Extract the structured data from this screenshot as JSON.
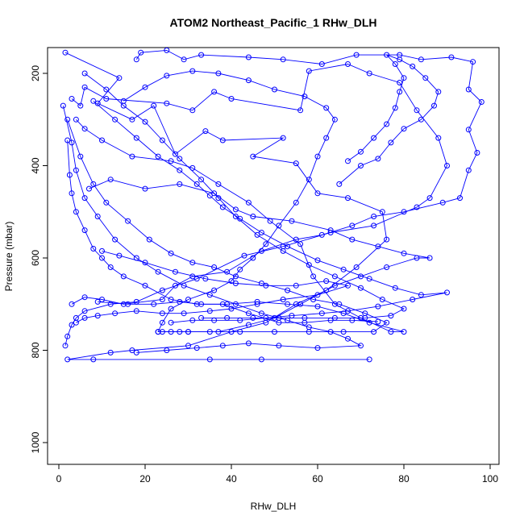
{
  "chart_data": {
    "type": "line",
    "title": "ATOM2 Northeast_Pacific_1 RHw_DLH",
    "xlabel": "RHw_DLH",
    "ylabel": "Pressure (mbar)",
    "xlim": [
      0,
      100
    ],
    "ylim": [
      1050,
      150
    ],
    "y_reversed": true,
    "x_ticks": [
      0,
      20,
      40,
      60,
      80,
      100
    ],
    "y_ticks": [
      200,
      400,
      600,
      800,
      1000
    ],
    "grid": false,
    "legend": "none",
    "series_color": "#0000ff",
    "marker": "open-circle",
    "series": [
      {
        "points": [
          [
            1.5,
            155
          ],
          [
            14,
            210
          ],
          [
            9,
            265
          ],
          [
            17,
            300
          ],
          [
            22,
            270
          ],
          [
            27,
            375
          ],
          [
            34,
            325
          ],
          [
            38,
            345
          ],
          [
            52,
            340
          ],
          [
            45,
            380
          ],
          [
            55,
            395
          ],
          [
            60,
            460
          ],
          [
            67,
            470
          ],
          [
            75,
            500
          ],
          [
            76,
            560
          ],
          [
            69,
            620
          ],
          [
            62,
            670
          ],
          [
            55,
            700
          ],
          [
            48,
            740
          ],
          [
            40,
            760
          ],
          [
            30,
            790
          ],
          [
            17,
            800
          ],
          [
            12,
            805
          ],
          [
            2,
            820
          ],
          [
            8,
            820
          ],
          [
            35,
            820
          ],
          [
            47,
            820
          ],
          [
            72,
            820
          ]
        ]
      },
      {
        "points": [
          [
            3,
            255
          ],
          [
            5,
            270
          ],
          [
            6,
            230
          ],
          [
            11,
            255
          ],
          [
            25,
            265
          ],
          [
            31,
            280
          ],
          [
            36,
            240
          ],
          [
            40,
            255
          ],
          [
            56,
            280
          ],
          [
            58,
            195
          ],
          [
            67,
            180
          ],
          [
            72,
            200
          ],
          [
            79,
            220
          ],
          [
            83,
            280
          ],
          [
            88,
            340
          ],
          [
            90,
            400
          ],
          [
            86,
            470
          ],
          [
            83,
            490
          ],
          [
            73,
            530
          ],
          [
            63,
            545
          ],
          [
            52,
            575
          ],
          [
            43,
            595
          ],
          [
            32,
            645
          ],
          [
            24,
            670
          ],
          [
            18,
            695
          ],
          [
            12,
            700
          ],
          [
            6,
            715
          ],
          [
            4,
            730
          ],
          [
            3,
            745
          ],
          [
            2,
            770
          ],
          [
            1.5,
            790
          ]
        ]
      },
      {
        "points": [
          [
            18,
            170
          ],
          [
            19,
            155
          ],
          [
            25,
            150
          ],
          [
            29,
            170
          ],
          [
            33,
            160
          ],
          [
            44,
            165
          ],
          [
            52,
            170
          ],
          [
            61,
            180
          ],
          [
            69,
            160
          ],
          [
            79,
            160
          ],
          [
            84,
            170
          ],
          [
            91,
            165
          ],
          [
            96,
            175
          ],
          [
            95,
            235
          ],
          [
            98,
            262
          ],
          [
            95,
            322
          ],
          [
            97,
            372
          ],
          [
            95,
            410
          ],
          [
            93,
            470
          ],
          [
            89,
            480
          ],
          [
            80,
            500
          ],
          [
            73,
            510
          ],
          [
            68,
            530
          ],
          [
            61,
            550
          ],
          [
            55,
            560
          ],
          [
            47,
            585
          ],
          [
            39,
            630
          ],
          [
            31,
            640
          ],
          [
            27,
            660
          ],
          [
            24,
            690
          ],
          [
            15,
            700
          ],
          [
            10,
            690
          ],
          [
            6,
            685
          ],
          [
            3,
            700
          ]
        ]
      },
      {
        "points": [
          [
            2,
            345
          ],
          [
            2.5,
            420
          ],
          [
            3,
            460
          ],
          [
            4,
            500
          ],
          [
            6,
            540
          ],
          [
            8,
            580
          ],
          [
            10,
            600
          ],
          [
            12,
            620
          ],
          [
            15,
            640
          ],
          [
            20,
            660
          ],
          [
            26,
            690
          ],
          [
            32,
            700
          ],
          [
            38,
            700
          ],
          [
            44,
            720
          ],
          [
            51,
            740
          ],
          [
            57,
            740
          ],
          [
            63,
            735
          ],
          [
            68,
            735
          ],
          [
            74,
            738
          ]
        ]
      },
      {
        "points": [
          [
            4,
            300
          ],
          [
            6,
            320
          ],
          [
            10,
            345
          ],
          [
            17,
            380
          ],
          [
            26,
            390
          ],
          [
            31,
            405
          ],
          [
            37,
            440
          ],
          [
            44,
            480
          ],
          [
            49,
            520
          ],
          [
            56,
            570
          ],
          [
            59,
            640
          ],
          [
            64,
            700
          ],
          [
            70,
            730
          ],
          [
            77,
            760
          ],
          [
            80,
            760
          ],
          [
            72,
            740
          ],
          [
            66,
            720
          ],
          [
            60,
            705
          ],
          [
            53,
            700
          ],
          [
            46,
            695
          ],
          [
            39,
            700
          ],
          [
            33,
            700
          ],
          [
            28,
            695
          ],
          [
            22,
            700
          ],
          [
            16,
            700
          ],
          [
            9,
            695
          ]
        ]
      },
      {
        "points": [
          [
            7,
            450
          ],
          [
            12,
            430
          ],
          [
            20,
            450
          ],
          [
            28,
            440
          ],
          [
            36,
            460
          ],
          [
            41,
            495
          ],
          [
            45,
            510
          ],
          [
            54,
            520
          ],
          [
            63,
            540
          ],
          [
            68,
            560
          ],
          [
            74,
            575
          ],
          [
            80,
            590
          ],
          [
            86,
            600
          ],
          [
            83,
            600
          ],
          [
            76,
            620
          ],
          [
            70,
            640
          ],
          [
            64,
            660
          ],
          [
            56,
            700
          ],
          [
            50,
            730
          ],
          [
            44,
            745
          ],
          [
            37,
            760
          ],
          [
            30,
            760
          ],
          [
            24,
            760
          ]
        ]
      },
      {
        "points": [
          [
            2,
            300
          ],
          [
            5,
            380
          ],
          [
            8,
            440
          ],
          [
            11,
            480
          ],
          [
            16,
            520
          ],
          [
            21,
            560
          ],
          [
            26,
            590
          ],
          [
            31,
            610
          ],
          [
            36,
            620
          ],
          [
            41,
            640
          ],
          [
            47,
            655
          ],
          [
            53,
            670
          ],
          [
            59,
            690
          ],
          [
            65,
            700
          ],
          [
            71,
            720
          ],
          [
            76,
            740
          ],
          [
            73,
            760
          ],
          [
            66,
            760
          ],
          [
            58,
            760
          ],
          [
            50,
            760
          ],
          [
            42,
            760
          ],
          [
            35,
            760
          ],
          [
            28,
            760
          ],
          [
            23,
            760
          ]
        ]
      },
      {
        "points": [
          [
            1,
            270
          ],
          [
            3,
            350
          ],
          [
            4,
            410
          ],
          [
            6,
            470
          ],
          [
            9,
            510
          ],
          [
            13,
            560
          ],
          [
            18,
            600
          ],
          [
            23,
            630
          ],
          [
            29,
            660
          ],
          [
            35,
            680
          ],
          [
            41,
            700
          ],
          [
            47,
            720
          ],
          [
            53,
            735
          ],
          [
            58,
            750
          ],
          [
            63,
            760
          ],
          [
            67,
            775
          ],
          [
            70,
            790
          ],
          [
            60,
            795
          ],
          [
            51,
            790
          ],
          [
            44,
            785
          ],
          [
            38,
            790
          ],
          [
            32,
            795
          ],
          [
            25,
            800
          ],
          [
            18,
            805
          ]
        ]
      },
      {
        "points": [
          [
            8,
            260
          ],
          [
            13,
            300
          ],
          [
            18,
            340
          ],
          [
            23,
            380
          ],
          [
            28,
            410
          ],
          [
            32,
            440
          ],
          [
            35,
            465
          ],
          [
            38,
            490
          ],
          [
            42,
            515
          ],
          [
            47,
            545
          ],
          [
            53,
            575
          ],
          [
            60,
            605
          ],
          [
            66,
            625
          ],
          [
            72,
            645
          ],
          [
            78,
            665
          ],
          [
            84,
            680
          ],
          [
            90,
            675
          ],
          [
            82,
            690
          ],
          [
            74,
            705
          ],
          [
            67,
            715
          ],
          [
            61,
            720
          ],
          [
            54,
            725
          ],
          [
            48,
            730
          ],
          [
            42,
            735
          ],
          [
            36,
            735
          ],
          [
            31,
            735
          ],
          [
            26,
            740
          ]
        ]
      },
      {
        "points": [
          [
            15,
            260
          ],
          [
            20,
            230
          ],
          [
            25,
            205
          ],
          [
            31,
            195
          ],
          [
            37,
            200
          ],
          [
            44,
            215
          ],
          [
            50,
            235
          ],
          [
            57,
            250
          ],
          [
            62,
            275
          ],
          [
            64,
            300
          ],
          [
            62,
            340
          ],
          [
            60,
            380
          ],
          [
            58,
            430
          ],
          [
            55,
            480
          ],
          [
            51,
            530
          ],
          [
            48,
            570
          ],
          [
            45,
            600
          ],
          [
            42,
            625
          ],
          [
            40,
            650
          ],
          [
            36,
            670
          ],
          [
            30,
            690
          ],
          [
            26,
            710
          ],
          [
            24,
            740
          ],
          [
            23,
            760
          ],
          [
            26,
            760
          ],
          [
            30,
            760
          ]
        ]
      },
      {
        "points": [
          [
            6,
            200
          ],
          [
            11,
            235
          ],
          [
            15,
            270
          ],
          [
            20,
            305
          ],
          [
            24,
            345
          ],
          [
            28,
            385
          ],
          [
            33,
            430
          ],
          [
            37,
            470
          ],
          [
            41,
            510
          ],
          [
            46,
            550
          ],
          [
            52,
            585
          ],
          [
            58,
            615
          ],
          [
            64,
            640
          ],
          [
            70,
            665
          ],
          [
            75,
            690
          ],
          [
            80,
            710
          ],
          [
            77,
            725
          ],
          [
            71,
            730
          ],
          [
            64,
            730
          ],
          [
            57,
            730
          ],
          [
            51,
            730
          ],
          [
            45,
            730
          ],
          [
            39,
            730
          ],
          [
            33,
            730
          ]
        ]
      },
      {
        "points": [
          [
            10,
            585
          ],
          [
            14,
            595
          ],
          [
            20,
            610
          ],
          [
            27,
            630
          ],
          [
            34,
            645
          ],
          [
            41,
            655
          ],
          [
            48,
            660
          ],
          [
            55,
            660
          ],
          [
            62,
            650
          ],
          [
            67,
            660
          ],
          [
            60,
            680
          ],
          [
            52,
            690
          ],
          [
            46,
            700
          ],
          [
            40,
            710
          ],
          [
            35,
            715
          ],
          [
            29,
            720
          ],
          [
            24,
            720
          ],
          [
            18,
            715
          ],
          [
            13,
            720
          ],
          [
            9,
            725
          ],
          [
            6,
            730
          ],
          [
            4,
            740
          ]
        ]
      },
      {
        "points": [
          [
            65,
            440
          ],
          [
            70,
            400
          ],
          [
            74,
            385
          ],
          [
            77,
            350
          ],
          [
            80,
            320
          ],
          [
            84,
            300
          ],
          [
            87,
            270
          ],
          [
            88,
            240
          ],
          [
            85,
            210
          ],
          [
            82,
            185
          ],
          [
            79,
            170
          ],
          [
            76,
            160
          ],
          [
            78,
            180
          ],
          [
            80,
            210
          ],
          [
            79,
            240
          ],
          [
            78,
            275
          ],
          [
            76,
            310
          ],
          [
            73,
            340
          ],
          [
            70,
            370
          ],
          [
            67,
            390
          ]
        ]
      }
    ]
  }
}
